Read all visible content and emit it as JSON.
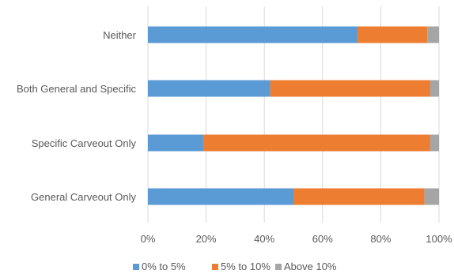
{
  "chart_data": {
    "type": "bar",
    "orientation": "horizontal",
    "stacked": true,
    "title": "",
    "xlabel": "",
    "ylabel": "",
    "categories": [
      "Neither",
      "Both General and Specific",
      "Specific Carveout Only",
      "General Carveout Only"
    ],
    "series": [
      {
        "name": "0% to 5%",
        "color": "#5b9bd5",
        "values": [
          72,
          42,
          19,
          50
        ]
      },
      {
        "name": "5% to 10%",
        "color": "#ed7d31",
        "values": [
          24,
          55,
          78,
          45
        ]
      },
      {
        "name": "Above 10%",
        "color": "#a5a5a5",
        "values": [
          4,
          3,
          3,
          5
        ]
      }
    ],
    "xlim": [
      0,
      100
    ],
    "xticks": [
      0,
      20,
      40,
      60,
      80,
      100
    ],
    "xtick_labels": [
      "0%",
      "20%",
      "40%",
      "60%",
      "80%",
      "100%"
    ],
    "grid": true,
    "legend_position": "bottom"
  }
}
